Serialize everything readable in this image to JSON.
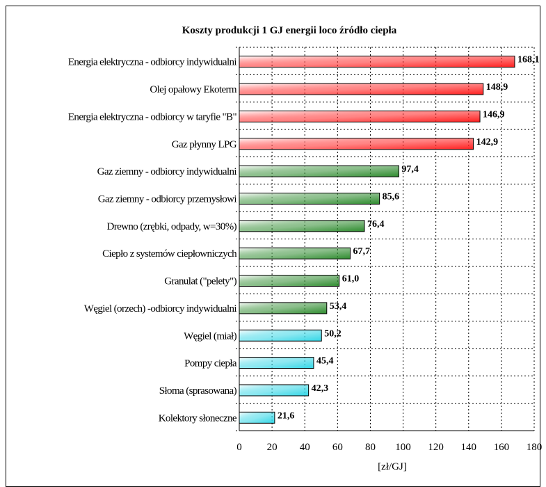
{
  "chart_data": {
    "type": "bar",
    "orientation": "horizontal",
    "title": "Koszty produkcji 1 GJ energii loco źródło ciepła",
    "xlabel": "[zł/GJ]",
    "ylabel": "",
    "xlim": [
      0,
      180
    ],
    "x_ticks": [
      0,
      20,
      40,
      60,
      80,
      100,
      120,
      140,
      160,
      180
    ],
    "grid": "dashed",
    "categories": [
      "Energia elektryczna - odbiorcy indywidualni",
      "Olej opałowy Ekoterm",
      "Energia elektryczna - odbiorcy w taryfie \"B\"",
      "Gaz płynny LPG",
      "Gaz ziemny - odbiorcy indywidualni",
      "Gaz ziemny - odbiorcy przemysłowi",
      "Drewno (zrębki, odpady, w=30%)",
      "Ciepło z systemów ciepłowniczych",
      "Granulat (\"pelety\")",
      "Węgiel (orzech) -odbiorcy indywidualni",
      "Węgiel (miał)",
      "Pompy ciepła",
      "Słoma (sprasowana)",
      "Kolektory słoneczne"
    ],
    "values": [
      168.1,
      148.9,
      146.9,
      142.9,
      97.4,
      85.6,
      76.4,
      67.7,
      61.0,
      53.4,
      50.2,
      45.4,
      42.3,
      21.6
    ],
    "value_labels": [
      "168,1",
      "148,9",
      "146,9",
      "142,9",
      "97,4",
      "85,6",
      "76,4",
      "67,7",
      "61,0",
      "53,4",
      "50,2",
      "45,4",
      "42,3",
      "21,6"
    ],
    "bar_groups": [
      "red",
      "red",
      "red",
      "red",
      "green",
      "green",
      "green",
      "green",
      "green",
      "green",
      "cyan",
      "cyan",
      "cyan",
      "cyan"
    ],
    "colors": {
      "red": "#ff2020",
      "green": "#2e8b2e",
      "cyan": "#33d6e6"
    }
  }
}
